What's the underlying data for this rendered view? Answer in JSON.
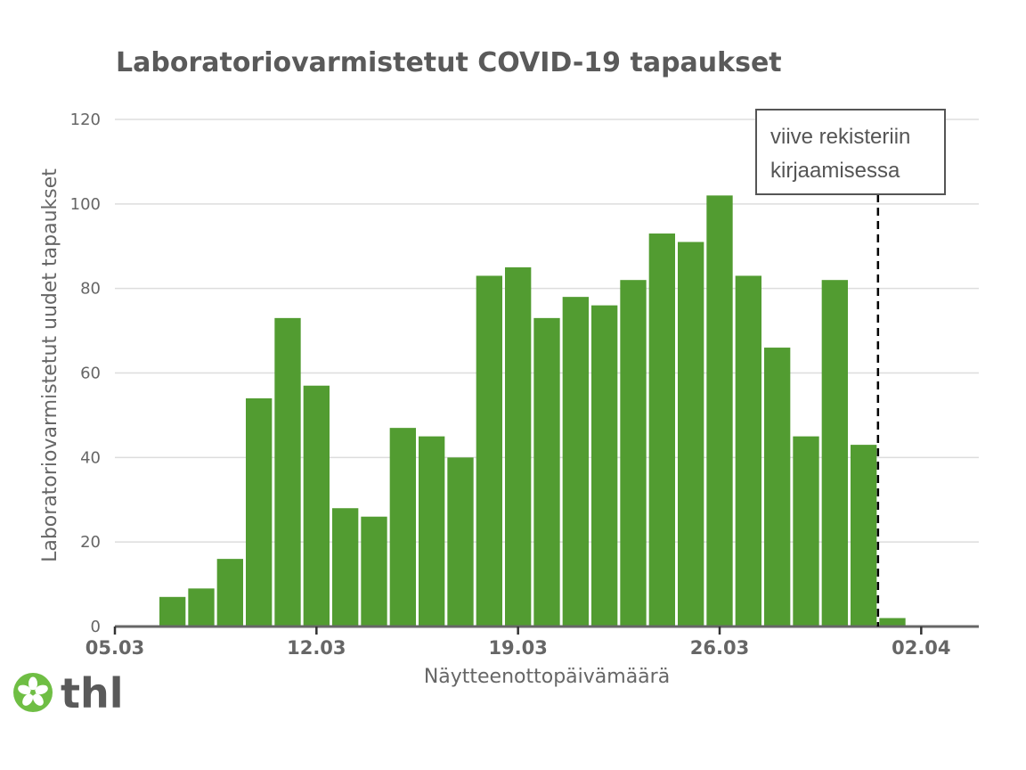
{
  "chart_data": {
    "type": "bar",
    "title": "Laboratoriovarmistetut COVID-19 tapaukset",
    "xlabel": "Näytteenottopäivämäärä",
    "ylabel": "Laboratoriovarmistetut uudet tapaukset",
    "ylim": [
      0,
      120
    ],
    "yticks": [
      0,
      20,
      40,
      60,
      80,
      100,
      120
    ],
    "xlim": [
      "2020-03-05",
      "2020-04-04"
    ],
    "xticks": [
      {
        "date": "2020-03-05",
        "label": "05.03"
      },
      {
        "date": "2020-03-12",
        "label": "12.03"
      },
      {
        "date": "2020-03-19",
        "label": "19.03"
      },
      {
        "date": "2020-03-26",
        "label": "26.03"
      },
      {
        "date": "2020-04-02",
        "label": "02.04"
      }
    ],
    "grid": true,
    "bar_color": "#529c31",
    "bars": [
      {
        "date": "2020-03-07",
        "value": 7
      },
      {
        "date": "2020-03-08",
        "value": 9
      },
      {
        "date": "2020-03-09",
        "value": 16
      },
      {
        "date": "2020-03-10",
        "value": 54
      },
      {
        "date": "2020-03-11",
        "value": 73
      },
      {
        "date": "2020-03-12",
        "value": 57
      },
      {
        "date": "2020-03-13",
        "value": 28
      },
      {
        "date": "2020-03-14",
        "value": 26
      },
      {
        "date": "2020-03-15",
        "value": 47
      },
      {
        "date": "2020-03-16",
        "value": 45
      },
      {
        "date": "2020-03-17",
        "value": 40
      },
      {
        "date": "2020-03-18",
        "value": 83
      },
      {
        "date": "2020-03-19",
        "value": 85
      },
      {
        "date": "2020-03-20",
        "value": 73
      },
      {
        "date": "2020-03-21",
        "value": 78
      },
      {
        "date": "2020-03-22",
        "value": 76
      },
      {
        "date": "2020-03-23",
        "value": 82
      },
      {
        "date": "2020-03-24",
        "value": 93
      },
      {
        "date": "2020-03-25",
        "value": 91
      },
      {
        "date": "2020-03-26",
        "value": 102
      },
      {
        "date": "2020-03-27",
        "value": 83
      },
      {
        "date": "2020-03-28",
        "value": 66
      },
      {
        "date": "2020-03-29",
        "value": 45
      },
      {
        "date": "2020-03-30",
        "value": 82
      },
      {
        "date": "2020-03-31",
        "value": 43
      },
      {
        "date": "2020-04-01",
        "value": 2
      }
    ],
    "annotation": {
      "lines": [
        "viive rekisteriin",
        "kirjaamisessa"
      ],
      "date": "2020-03-31",
      "line_style": "dashed"
    }
  },
  "logo": {
    "text": "thl",
    "color": "#6fbe44",
    "icon": "thl-flower-icon"
  }
}
